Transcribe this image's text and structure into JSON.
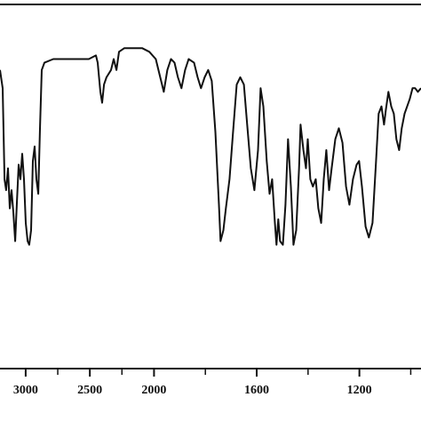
{
  "chart_data": {
    "type": "line",
    "color": "#111111",
    "x": [
      3200,
      3179,
      3165,
      3152,
      3138,
      3124,
      3110,
      3096,
      3082,
      3069,
      3055,
      3041,
      3027,
      3013,
      2999,
      2985,
      2972,
      2958,
      2944,
      2930,
      2916,
      2902,
      2889,
      2875,
      2854,
      2785,
      2646,
      2508,
      2453,
      2439,
      2418,
      2404,
      2390,
      2370,
      2335,
      2314,
      2293,
      2273,
      2231,
      2162,
      2093,
      2037,
      1993,
      1976,
      1962,
      1948,
      1934,
      1920,
      1907,
      1893,
      1879,
      1865,
      1844,
      1830,
      1817,
      1803,
      1789,
      1775,
      1761,
      1747,
      1741,
      1730,
      1720,
      1706,
      1692,
      1678,
      1664,
      1650,
      1637,
      1623,
      1609,
      1595,
      1585,
      1574,
      1561,
      1550,
      1540,
      1529,
      1523,
      1516,
      1509,
      1498,
      1488,
      1478,
      1467,
      1457,
      1446,
      1435,
      1429,
      1418,
      1408,
      1401,
      1391,
      1381,
      1370,
      1360,
      1349,
      1339,
      1329,
      1318,
      1308,
      1294,
      1280,
      1266,
      1252,
      1239,
      1225,
      1211,
      1201,
      1190,
      1176,
      1163,
      1149,
      1135,
      1125,
      1114,
      1104,
      1097,
      1087,
      1076,
      1066,
      1056,
      1045,
      1035,
      1024,
      1014,
      1004,
      993,
      983,
      972,
      960
    ],
    "values": [
      82,
      77,
      52,
      49,
      55,
      44,
      49,
      43,
      35,
      45,
      56,
      52,
      59,
      52,
      40,
      35,
      34,
      38,
      57,
      61,
      52,
      48,
      65,
      82,
      84,
      85,
      85,
      85,
      86,
      84,
      76,
      73,
      78,
      80,
      82,
      85,
      82,
      87,
      88,
      88,
      88,
      87,
      85,
      80,
      76,
      82,
      85,
      84,
      80,
      77,
      82,
      85,
      84,
      80,
      77,
      80,
      82,
      79,
      65,
      45,
      35,
      38,
      44,
      52,
      65,
      78,
      80,
      78,
      67,
      55,
      49,
      60,
      77,
      72,
      57,
      48,
      52,
      40,
      34,
      41,
      35,
      34,
      45,
      63,
      50,
      34,
      38,
      55,
      67,
      60,
      55,
      63,
      52,
      50,
      52,
      44,
      40,
      52,
      60,
      49,
      55,
      63,
      66,
      62,
      50,
      45,
      52,
      56,
      57,
      50,
      39,
      36,
      40,
      57,
      70,
      72,
      67,
      71,
      76,
      72,
      70,
      63,
      60,
      66,
      70,
      72,
      74,
      77,
      77,
      76,
      77
    ],
    "xlim": [
      3200,
      960
    ],
    "xscale": {
      "break": 2000,
      "ratio": 2
    },
    "xticks": [
      3000,
      2500,
      2000,
      1600,
      1200
    ],
    "xminor_ticks": [
      2750,
      2250,
      1800,
      1400,
      1000
    ],
    "ylim": [
      0,
      100
    ]
  }
}
